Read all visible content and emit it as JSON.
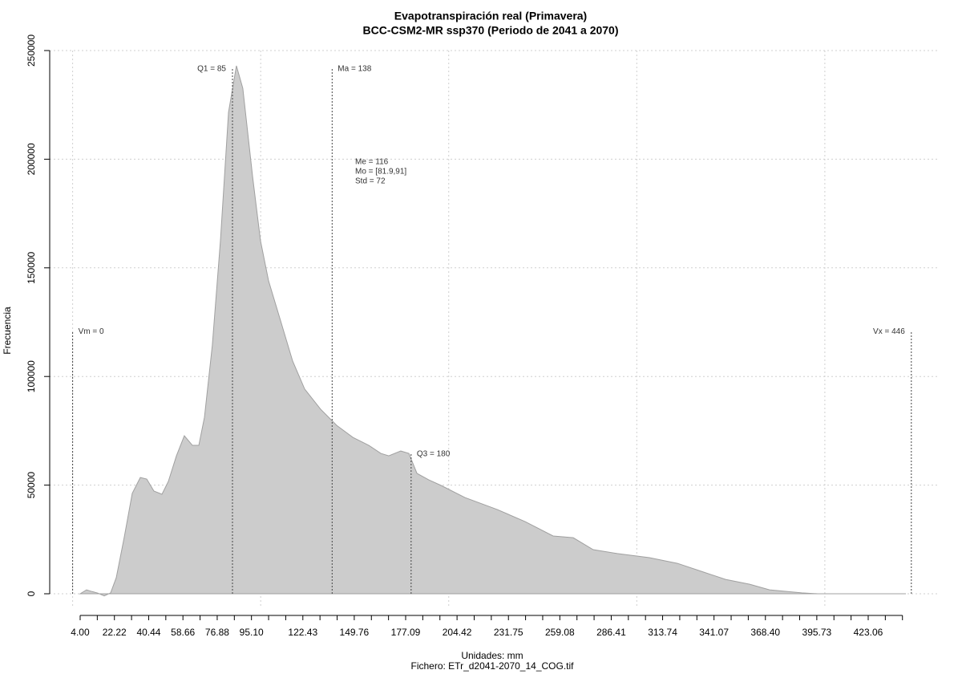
{
  "chart_data": {
    "type": "area",
    "title": "Evapotranspiración real (Primavera)",
    "subtitle": "BCC-CSM2-MR ssp370 (Periodo de 2041 a 2070)",
    "xlabel": "Unidades: mm",
    "footer": "Fichero: ETr_d2041-2070_14_COG.tif",
    "ylabel": "Frecuencia",
    "color": "#cccccc",
    "x": [
      4,
      7.4,
      10.4,
      13.4,
      16.8,
      20.2,
      23.2,
      27.4,
      31.7,
      36,
      39.4,
      43.2,
      47.5,
      50.9,
      55.2,
      59.4,
      63.7,
      67.1,
      70.1,
      74.3,
      78.6,
      82.9,
      87.1,
      90.5,
      95.7,
      99.9,
      104.2,
      110.6,
      117,
      123.4,
      131.9,
      140.4,
      149,
      157.5,
      163.9,
      168.1,
      174.5,
      178.8,
      183.1,
      189.4,
      195.8,
      208.6,
      225.7,
      240.6,
      255.5,
      266.2,
      276.8,
      289.6,
      306.7,
      321.6,
      334.4,
      347.2,
      360,
      370.6,
      387.7,
      396.2,
      443.1
    ],
    "values": [
      0,
      1800,
      1000,
      300,
      -1000,
      400,
      7400,
      25800,
      46200,
      53500,
      52800,
      47300,
      45800,
      51700,
      63500,
      72700,
      68300,
      68300,
      81200,
      114500,
      162500,
      221600,
      243000,
      232600,
      192000,
      162500,
      144000,
      125600,
      107100,
      94200,
      84900,
      77500,
      72000,
      68300,
      64600,
      63500,
      65700,
      64600,
      55400,
      52400,
      49900,
      44300,
      38800,
      33200,
      26600,
      25800,
      20300,
      18500,
      16600,
      14000,
      10300,
      6600,
      4400,
      1800,
      400,
      0,
      0
    ],
    "xlim": [
      0,
      446
    ],
    "ylim": [
      0,
      250000
    ],
    "yticks": [
      0,
      50000,
      100000,
      150000,
      200000,
      250000
    ],
    "xgrid": [
      0,
      100,
      200,
      300,
      400
    ],
    "grid": true,
    "xticks": [
      {
        "value": 4,
        "label": "4.00"
      },
      22.22,
      40.44,
      58.66,
      76.88,
      {
        "value": 95.1,
        "label": "95.10"
      },
      122.43,
      149.76,
      177.09,
      204.42,
      231.75,
      259.08,
      286.41,
      313.74,
      341.07,
      {
        "value": 368.4,
        "label": "368.40"
      },
      395.73,
      423.06
    ],
    "xminorticks": [
      13.11,
      31.33,
      49.55,
      67.77,
      85.99,
      104.21,
      113.32,
      131.54,
      140.65,
      158.87,
      167.98,
      186.2,
      195.31,
      213.53,
      222.64,
      240.86,
      249.97,
      268.19,
      277.3,
      295.52,
      304.63,
      322.85,
      331.96,
      350.18,
      359.29,
      377.51,
      386.62,
      404.84,
      413.95,
      432.17,
      441.28
    ],
    "markers": [
      {
        "label": "Vm = 0",
        "value": 0,
        "height": 121000
      },
      {
        "label": "Q1 = 85",
        "value": 85,
        "height": 242000
      },
      {
        "label": "Ma = 138",
        "value": 138,
        "height": 242000
      },
      {
        "label": "Q3 = 180",
        "value": 180,
        "height": 64600
      },
      {
        "label": "Vx = 446",
        "value": 446,
        "height": 121000
      }
    ],
    "stats": [
      "Me = 116",
      "Mo = [81.9,91]",
      "Std = 72"
    ]
  }
}
